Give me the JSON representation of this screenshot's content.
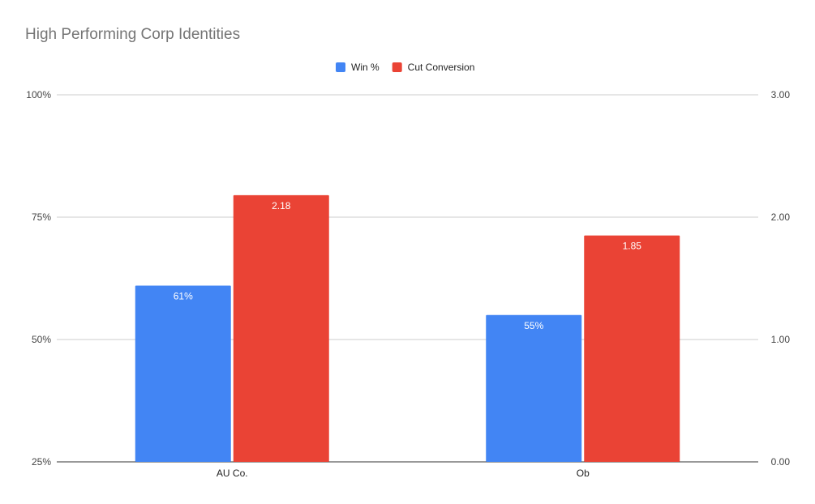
{
  "chart_data": {
    "type": "bar",
    "title": "High Performing Corp Identities",
    "categories": [
      "AU Co.",
      "Ob"
    ],
    "series": [
      {
        "name": "Win %",
        "axis": "left",
        "values": [
          0.61,
          0.55
        ],
        "data_labels": [
          "61%",
          "55%"
        ],
        "color": "#4285f4"
      },
      {
        "name": "Cut Conversion",
        "axis": "right",
        "values": [
          2.18,
          1.85
        ],
        "data_labels": [
          "2.18",
          "1.85"
        ],
        "color": "#ea4335"
      }
    ],
    "y_left": {
      "ylim": [
        0.25,
        1.0
      ],
      "ticks": [
        0.25,
        0.5,
        0.75,
        1.0
      ],
      "tick_labels": [
        "25%",
        "50%",
        "75%",
        "100%"
      ]
    },
    "y_right": {
      "ylim": [
        0,
        3
      ],
      "ticks": [
        0,
        1,
        2,
        3
      ],
      "tick_labels": [
        "0.00",
        "1.00",
        "2.00",
        "3.00"
      ]
    },
    "legend_position": "top-center",
    "grid": true,
    "gridline_color": "#cccccc"
  }
}
